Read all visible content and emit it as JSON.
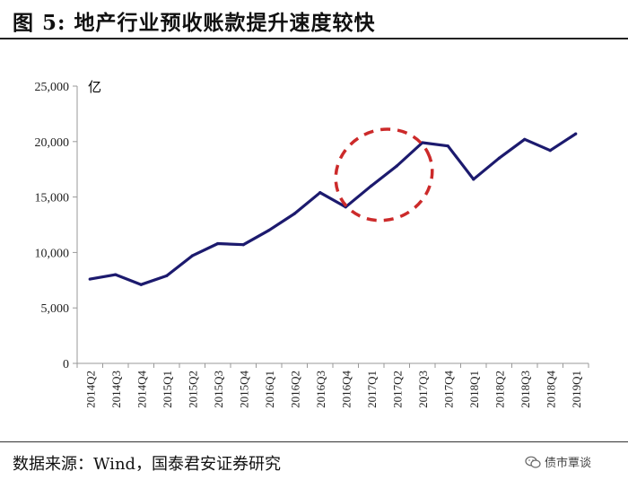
{
  "header": {
    "title": "图 5: 地产行业预收账款提升速度较快"
  },
  "footer": {
    "source": "数据来源：Wind，国泰君安证券研究",
    "watermark": "债市覃谈"
  },
  "icons": {
    "watermark_icon": "wechat-icon"
  },
  "colors": {
    "line": "#1c1a6e",
    "highlight": "#cc2a2a",
    "axis": "#999999"
  },
  "chart_data": {
    "type": "line",
    "unit_label": "亿",
    "categories": [
      "2014Q2",
      "2014Q3",
      "2014Q4",
      "2015Q1",
      "2015Q2",
      "2015Q3",
      "2015Q4",
      "2016Q1",
      "2016Q2",
      "2016Q3",
      "2016Q4",
      "2017Q1",
      "2017Q2",
      "2017Q3",
      "2017Q4",
      "2018Q1",
      "2018Q2",
      "2018Q3",
      "2018Q4",
      "2019Q1"
    ],
    "series": [
      {
        "values": [
          7600,
          8000,
          7100,
          7900,
          9700,
          10800,
          10700,
          12000,
          13500,
          15400,
          14100,
          16000,
          17800,
          19900,
          19600,
          16600,
          18500,
          20200,
          19200,
          20700
        ]
      }
    ],
    "ylim": [
      0,
      25000
    ],
    "yticks": [
      0,
      5000,
      10000,
      15000,
      20000,
      25000
    ],
    "ytick_labels": [
      "0",
      "5,000",
      "10,000",
      "15,000",
      "20,000",
      "25,000"
    ],
    "grid": false,
    "legend": "none",
    "annotation": {
      "type": "dashed-ellipse",
      "from_category": "2016Q4",
      "to_category": "2017Q3"
    }
  }
}
